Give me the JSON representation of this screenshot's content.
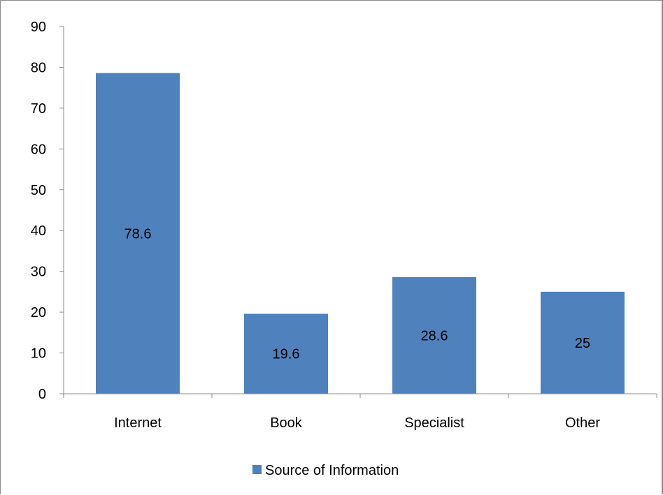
{
  "chart_data": {
    "type": "bar",
    "categories": [
      "Internet",
      "Book",
      "Specialist",
      "Other"
    ],
    "series": [
      {
        "name": "Source of Information",
        "values": [
          78.6,
          19.6,
          28.6,
          25
        ],
        "data_labels": [
          "78.6",
          "19.6",
          "28.6",
          "25"
        ],
        "color": "#4f81bd"
      }
    ],
    "title": "",
    "xlabel": "",
    "ylabel": "",
    "ylim": [
      0,
      90
    ],
    "y_ticks": [
      0,
      10,
      20,
      30,
      40,
      50,
      60,
      70,
      80,
      90
    ],
    "y_tick_labels": [
      "0",
      "10",
      "20",
      "30",
      "40",
      "50",
      "60",
      "70",
      "80",
      "90"
    ],
    "grid": false,
    "legend": {
      "position": "bottom",
      "entries": [
        "Source of Information"
      ]
    },
    "colors": {
      "bar": "#4f81bd",
      "axis": "#8c8c8c",
      "frame": "#8c8c8c"
    }
  }
}
